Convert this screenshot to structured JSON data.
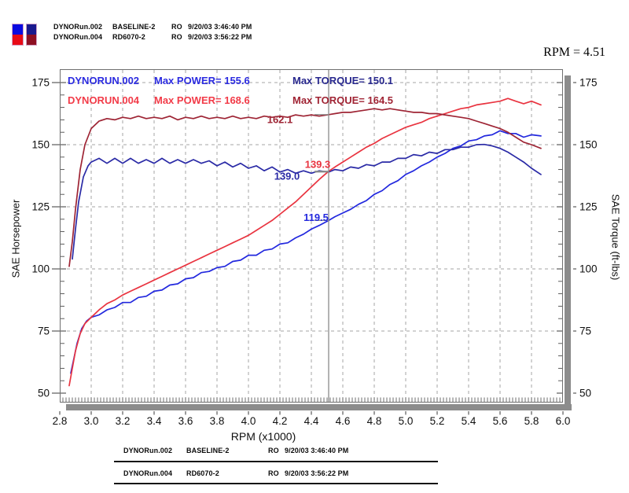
{
  "header_legend": {
    "swatch_colors": {
      "power_002": "#0a0ae0",
      "power_004": "#e80a16",
      "torque_002": "#1a1a8e",
      "torque_004": "#8e1022"
    },
    "rows": [
      {
        "file": "DYNORun.002",
        "config": "BASELINE-2",
        "ro": "RO",
        "datetime": "9/20/03 3:46:40 PM"
      },
      {
        "file": "DYNORun.004",
        "config": "RD6070-2",
        "ro": "RO",
        "datetime": "9/20/03 3:56:22 PM"
      }
    ]
  },
  "cursor": {
    "readout": "RPM = 4.51",
    "rpm": 4.51
  },
  "chart_data": {
    "type": "line",
    "title": "",
    "xlabel": "RPM (x1000)",
    "ylabel_left": "SAE Horsepower",
    "ylabel_right": "SAE Torque (ft-lbs)",
    "xlim": [
      2.8,
      6.0
    ],
    "ylim": [
      50,
      175
    ],
    "grid": true,
    "xticks": [
      2.8,
      3.0,
      3.2,
      3.4,
      3.6,
      3.8,
      4.0,
      4.2,
      4.4,
      4.6,
      4.8,
      5.0,
      5.2,
      5.4,
      5.6,
      5.8,
      6.0
    ],
    "xtick_labels": [
      "2.8",
      "3.0",
      "3.2",
      "3.4",
      "3.6",
      "3.8",
      "4.0",
      "4.2",
      "4.4",
      "4.6",
      "4.8",
      "5.0",
      "5.2",
      "5.4",
      "5.6",
      "5.8",
      "6.0"
    ],
    "yticks": [
      50,
      75,
      100,
      125,
      150,
      175
    ],
    "ytick_labels": [
      "50",
      "75",
      "100",
      "125",
      "150",
      "175"
    ],
    "gridline_values_y": [
      75,
      100,
      125,
      150,
      175
    ],
    "legend": [
      {
        "name": "DYNORUN.002",
        "max_power": "Max POWER= 155.6",
        "max_torque": "Max TORQUE= 150.1",
        "power_color": "#2b2be0",
        "torque_color": "#28288e"
      },
      {
        "name": "DYNORUN.004",
        "max_power": "Max POWER= 168.6",
        "max_torque": "Max TORQUE= 164.5",
        "power_color": "#f23b48",
        "torque_color": "#a02434"
      }
    ],
    "cursor_values": [
      {
        "series": "torque_004",
        "label": "162.1",
        "value": 162.1,
        "color": "#9e2434"
      },
      {
        "series": "power_004",
        "label": "139.3",
        "value": 139.3,
        "color": "#e93440"
      },
      {
        "series": "torque_002",
        "label": "139.0",
        "value": 139.0,
        "color": "#2a2aa6"
      },
      {
        "series": "power_002",
        "label": "119.5",
        "value": 119.5,
        "color": "#2228de"
      }
    ],
    "series": [
      {
        "name": "power_002",
        "run": "DYNORun.002",
        "quantity": "SAE Horsepower",
        "color": "#2228de",
        "x": [
          2.87,
          2.89,
          2.91,
          2.94,
          2.97,
          3.0,
          3.05,
          3.1,
          3.15,
          3.2,
          3.25,
          3.3,
          3.35,
          3.4,
          3.45,
          3.5,
          3.55,
          3.6,
          3.65,
          3.7,
          3.75,
          3.8,
          3.85,
          3.9,
          3.95,
          4.0,
          4.05,
          4.1,
          4.15,
          4.2,
          4.25,
          4.3,
          4.35,
          4.4,
          4.45,
          4.51,
          4.55,
          4.6,
          4.65,
          4.7,
          4.75,
          4.8,
          4.85,
          4.9,
          4.95,
          5.0,
          5.05,
          5.1,
          5.15,
          5.2,
          5.25,
          5.3,
          5.35,
          5.4,
          5.45,
          5.5,
          5.55,
          5.6,
          5.65,
          5.7,
          5.75,
          5.8,
          5.86
        ],
        "y": [
          58,
          64,
          70,
          76,
          79,
          80.5,
          81.5,
          83.5,
          84.5,
          86.5,
          86.5,
          88.5,
          89,
          91,
          91.5,
          93.5,
          94,
          96,
          96.5,
          98.5,
          99,
          100.5,
          101,
          103,
          103.5,
          105.5,
          105.5,
          107.5,
          108,
          110,
          110.5,
          112.5,
          114,
          116,
          117.5,
          119.5,
          121,
          122.5,
          124,
          126,
          127.5,
          130,
          131.5,
          134,
          135.5,
          138,
          139.5,
          141.5,
          143,
          145,
          146.5,
          148.5,
          149.5,
          151.5,
          152,
          153.5,
          154,
          155.6,
          154.5,
          154.5,
          153,
          154,
          153.5
        ]
      },
      {
        "name": "torque_002",
        "run": "DYNORun.002",
        "quantity": "SAE Torque (ft-lbs)",
        "color": "#2a2aa6",
        "x": [
          2.88,
          2.9,
          2.92,
          2.95,
          2.98,
          3.0,
          3.05,
          3.1,
          3.15,
          3.2,
          3.25,
          3.3,
          3.35,
          3.4,
          3.45,
          3.5,
          3.55,
          3.6,
          3.65,
          3.7,
          3.75,
          3.8,
          3.85,
          3.9,
          3.95,
          4.0,
          4.05,
          4.1,
          4.15,
          4.2,
          4.25,
          4.3,
          4.35,
          4.4,
          4.45,
          4.51,
          4.55,
          4.6,
          4.65,
          4.7,
          4.75,
          4.8,
          4.85,
          4.9,
          4.95,
          5.0,
          5.05,
          5.1,
          5.15,
          5.2,
          5.25,
          5.3,
          5.35,
          5.4,
          5.45,
          5.5,
          5.55,
          5.6,
          5.65,
          5.7,
          5.75,
          5.8,
          5.86
        ],
        "y": [
          104,
          116,
          127,
          137,
          141.5,
          143,
          144.5,
          142.5,
          144.5,
          142.5,
          144.5,
          142.5,
          144,
          142.5,
          144.5,
          142.5,
          144,
          142.5,
          144,
          142.5,
          143.5,
          141.5,
          143,
          141,
          142.5,
          140.5,
          141.5,
          139.5,
          141,
          139,
          140,
          138.5,
          139.5,
          138.5,
          139.5,
          139.0,
          140,
          139.5,
          141,
          140.5,
          142,
          141.5,
          143,
          143,
          144.5,
          144.5,
          146,
          145.5,
          147,
          146.5,
          148,
          148,
          149,
          149,
          150,
          150.1,
          149.5,
          148.5,
          147,
          145,
          143,
          140.5,
          138
        ]
      },
      {
        "name": "power_004",
        "run": "DYNORun.004",
        "quantity": "SAE Horsepower",
        "color": "#e93440",
        "x": [
          2.86,
          2.88,
          2.9,
          2.93,
          2.96,
          3.0,
          3.05,
          3.1,
          3.15,
          3.2,
          3.25,
          3.3,
          3.35,
          3.4,
          3.45,
          3.5,
          3.55,
          3.6,
          3.65,
          3.7,
          3.75,
          3.8,
          3.85,
          3.9,
          3.95,
          4.0,
          4.05,
          4.1,
          4.15,
          4.2,
          4.25,
          4.3,
          4.35,
          4.4,
          4.45,
          4.51,
          4.55,
          4.6,
          4.65,
          4.7,
          4.75,
          4.8,
          4.85,
          4.9,
          4.95,
          5.0,
          5.05,
          5.1,
          5.15,
          5.2,
          5.25,
          5.3,
          5.35,
          5.4,
          5.45,
          5.5,
          5.55,
          5.6,
          5.65,
          5.7,
          5.75,
          5.8,
          5.86
        ],
        "y": [
          53,
          60,
          67,
          74,
          78,
          80.5,
          83.5,
          86,
          87.5,
          89.5,
          91,
          92.5,
          94,
          95.5,
          97,
          98.5,
          100,
          101.5,
          103,
          104.5,
          106,
          107.5,
          109,
          110.5,
          112,
          113.5,
          115.5,
          117.5,
          119.5,
          122,
          124.5,
          127,
          130,
          133,
          136,
          139.3,
          141,
          143,
          145,
          147,
          149,
          150.5,
          152.5,
          154,
          155.5,
          157,
          158,
          159,
          160.5,
          161.5,
          162.5,
          163.5,
          164.5,
          165,
          166,
          166.5,
          167,
          167.5,
          168.6,
          167.5,
          166.5,
          167.5,
          166
        ]
      },
      {
        "name": "torque_004",
        "run": "DYNORun.004",
        "quantity": "SAE Torque (ft-lbs)",
        "color": "#9e2434",
        "x": [
          2.86,
          2.88,
          2.9,
          2.93,
          2.96,
          3.0,
          3.05,
          3.1,
          3.15,
          3.2,
          3.25,
          3.3,
          3.35,
          3.4,
          3.45,
          3.5,
          3.55,
          3.6,
          3.65,
          3.7,
          3.75,
          3.8,
          3.85,
          3.9,
          3.95,
          4.0,
          4.05,
          4.1,
          4.15,
          4.2,
          4.25,
          4.3,
          4.35,
          4.4,
          4.45,
          4.51,
          4.55,
          4.6,
          4.65,
          4.7,
          4.75,
          4.8,
          4.85,
          4.9,
          4.95,
          5.0,
          5.05,
          5.1,
          5.15,
          5.2,
          5.25,
          5.3,
          5.35,
          5.4,
          5.45,
          5.5,
          5.55,
          5.6,
          5.65,
          5.7,
          5.75,
          5.8,
          5.86
        ],
        "y": [
          101,
          111,
          124,
          140,
          150,
          156.5,
          159.5,
          160.5,
          160,
          161,
          160.5,
          161.5,
          160.5,
          161,
          160.5,
          161.5,
          160,
          161,
          160.5,
          161.5,
          160.5,
          161,
          160.5,
          161.5,
          160.5,
          161,
          160.5,
          161.5,
          161,
          161.5,
          161,
          162,
          161.5,
          162,
          161.5,
          162.1,
          162.5,
          163,
          163,
          163.5,
          164,
          164.5,
          164,
          164.5,
          164,
          163.5,
          163,
          163,
          162.5,
          162.5,
          162,
          161.5,
          161,
          160.5,
          159.5,
          158.5,
          157.5,
          156.5,
          155,
          153,
          151,
          150,
          148.5
        ]
      }
    ]
  },
  "footer_table": {
    "rows": [
      {
        "file": "DYNORun.002",
        "config": "BASELINE-2",
        "ro": "RO",
        "datetime": "9/20/03 3:46:40 PM"
      },
      {
        "file": "DYNORun.004",
        "config": "RD6070-2",
        "ro": "RO",
        "datetime": "9/20/03 3:56:22 PM"
      }
    ]
  }
}
